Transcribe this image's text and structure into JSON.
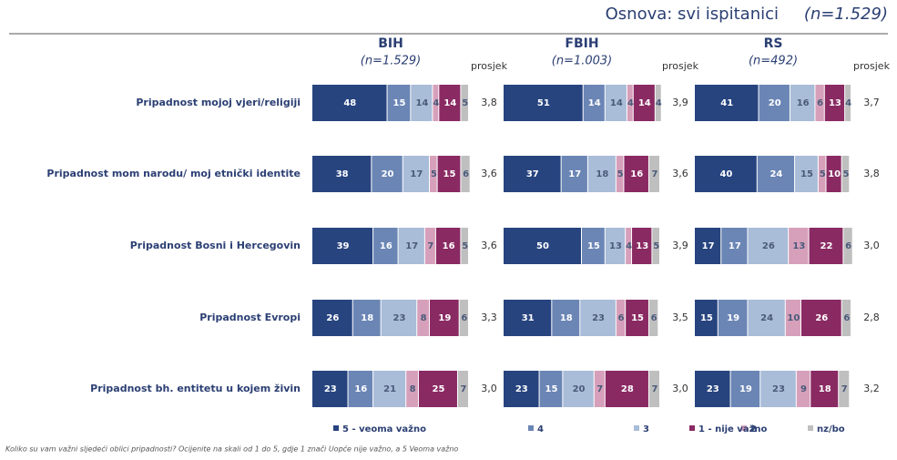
{
  "basis": "Osnova: svi ispitanici",
  "basis_n": "(n=1.529)",
  "footnote": "Koliko su vam važni sljedeći oblici pripadnosti? Ocijenite na skali od 1 do 5, gdje 1 znači Uopće nije važno, a 5 Veoma važno",
  "chart_data": [
    {
      "type": "bar",
      "stacked": true,
      "orientation": "horizontal",
      "title": "BIH",
      "subtitle": "(n=1.529)",
      "xlim": [
        0,
        100
      ],
      "categories": [
        "Pripadnost mojoj vjeri/religiji",
        "Pripadnost mom narodu/ moj etnički identite",
        "Pripadnost Bosni i Hercegovin",
        "Pripadnost Evropi",
        "Pripadnost bh. entitetu u kojem živin"
      ],
      "average_header": "prosjek",
      "averages": [
        {
          "value": 3.8,
          "label": "3,8"
        },
        {
          "value": 3.6,
          "label": "3,6"
        },
        {
          "value": 3.6,
          "label": "3,6"
        },
        {
          "value": 3.3,
          "label": "3,3"
        },
        {
          "value": 3.0,
          "label": "3,0"
        }
      ],
      "series": [
        {
          "name": "5 - veoma važno",
          "color": "#27447f",
          "values": [
            48,
            38,
            39,
            26,
            23
          ]
        },
        {
          "name": "4",
          "color": "#6b86b5",
          "values": [
            15,
            20,
            16,
            18,
            16
          ]
        },
        {
          "name": "3",
          "color": "#a9bcd8",
          "values": [
            14,
            17,
            17,
            23,
            21
          ]
        },
        {
          "name": "2",
          "color": "#d6a0bb",
          "values": [
            4,
            5,
            7,
            8,
            8
          ]
        },
        {
          "name": "1 - nije važno",
          "color": "#8a2a63",
          "values": [
            14,
            15,
            16,
            19,
            25
          ]
        },
        {
          "name": "nz/bo",
          "color": "#bfbfbf",
          "values": [
            5,
            6,
            5,
            6,
            7
          ]
        }
      ]
    },
    {
      "type": "bar",
      "stacked": true,
      "orientation": "horizontal",
      "title": "FBIH",
      "subtitle": "(n=1.003)",
      "xlim": [
        0,
        100
      ],
      "average_header": "prosjek",
      "averages": [
        {
          "value": 3.9,
          "label": "3,9"
        },
        {
          "value": 3.6,
          "label": "3,6"
        },
        {
          "value": 3.9,
          "label": "3,9"
        },
        {
          "value": 3.5,
          "label": "3,5"
        },
        {
          "value": 3.0,
          "label": "3,0"
        }
      ],
      "series": [
        {
          "color": "#27447f",
          "values": [
            51,
            37,
            50,
            31,
            23
          ]
        },
        {
          "color": "#6b86b5",
          "values": [
            14,
            17,
            15,
            18,
            15
          ]
        },
        {
          "color": "#a9bcd8",
          "values": [
            14,
            18,
            13,
            23,
            20
          ]
        },
        {
          "color": "#d6a0bb",
          "values": [
            4,
            5,
            4,
            6,
            7
          ]
        },
        {
          "color": "#8a2a63",
          "values": [
            14,
            16,
            13,
            15,
            28
          ]
        },
        {
          "color": "#bfbfbf",
          "values": [
            4,
            7,
            5,
            6,
            7
          ]
        }
      ]
    },
    {
      "type": "bar",
      "stacked": true,
      "orientation": "horizontal",
      "title": "RS",
      "subtitle": "(n=492)",
      "xlim": [
        0,
        100
      ],
      "average_header": "prosjek",
      "averages": [
        {
          "value": 3.7,
          "label": "3,7"
        },
        {
          "value": 3.8,
          "label": "3,8"
        },
        {
          "value": 3.0,
          "label": "3,0"
        },
        {
          "value": 2.8,
          "label": "2,8"
        },
        {
          "value": 3.2,
          "label": "3,2"
        }
      ],
      "series": [
        {
          "color": "#27447f",
          "values": [
            41,
            40,
            17,
            15,
            23
          ]
        },
        {
          "color": "#6b86b5",
          "values": [
            20,
            24,
            17,
            19,
            19
          ]
        },
        {
          "color": "#a9bcd8",
          "values": [
            16,
            15,
            26,
            24,
            23
          ]
        },
        {
          "color": "#d6a0bb",
          "values": [
            6,
            5,
            13,
            10,
            9
          ]
        },
        {
          "color": "#8a2a63",
          "values": [
            13,
            10,
            22,
            26,
            18
          ]
        },
        {
          "color": "#bfbfbf",
          "values": [
            4,
            5,
            6,
            6,
            7
          ]
        }
      ]
    }
  ]
}
